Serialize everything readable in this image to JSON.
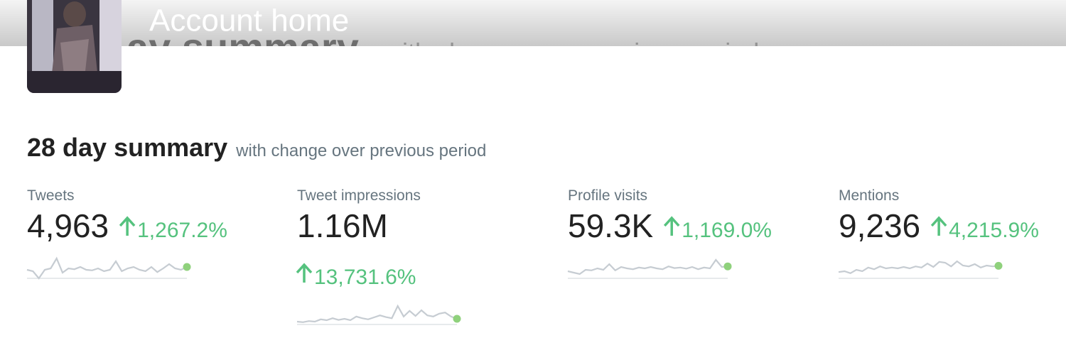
{
  "header": {
    "title": "Account home",
    "ghost_title": "ay summary",
    "ghost_subtitle": "with change over previous period"
  },
  "summary": {
    "title": "28 day summary",
    "subtitle": "with change over previous period",
    "metrics": [
      {
        "label": "Tweets",
        "value": "4,963",
        "change": "1,267.2%",
        "sparkline": [
          50,
          45,
          20,
          50,
          55,
          90,
          40,
          55,
          52,
          60,
          50,
          48,
          55,
          45,
          50,
          80,
          45,
          55,
          60,
          50,
          45,
          60,
          42,
          55,
          70,
          55,
          50,
          60
        ]
      },
      {
        "label": "Tweet impressions",
        "value": "1.16M",
        "change": "13,731.6%",
        "sparkline": [
          30,
          28,
          32,
          30,
          38,
          35,
          42,
          36,
          40,
          35,
          48,
          42,
          38,
          45,
          52,
          46,
          42,
          85,
          48,
          68,
          50,
          70,
          52,
          48,
          58,
          62,
          48,
          40
        ]
      },
      {
        "label": "Profile visits",
        "value": "59.3K",
        "change": "1,169.0%",
        "sparkline": [
          45,
          40,
          35,
          50,
          48,
          55,
          50,
          70,
          48,
          60,
          55,
          52,
          58,
          55,
          60,
          55,
          52,
          62,
          56,
          58,
          54,
          60,
          52,
          58,
          55,
          85,
          60,
          62
        ]
      },
      {
        "label": "Mentions",
        "value": "9,236",
        "change": "4,215.9%",
        "sparkline": [
          42,
          45,
          38,
          50,
          45,
          58,
          52,
          62,
          55,
          58,
          55,
          60,
          55,
          62,
          58,
          72,
          60,
          78,
          75,
          62,
          80,
          65,
          62,
          70,
          58,
          65,
          62,
          64
        ]
      }
    ]
  }
}
